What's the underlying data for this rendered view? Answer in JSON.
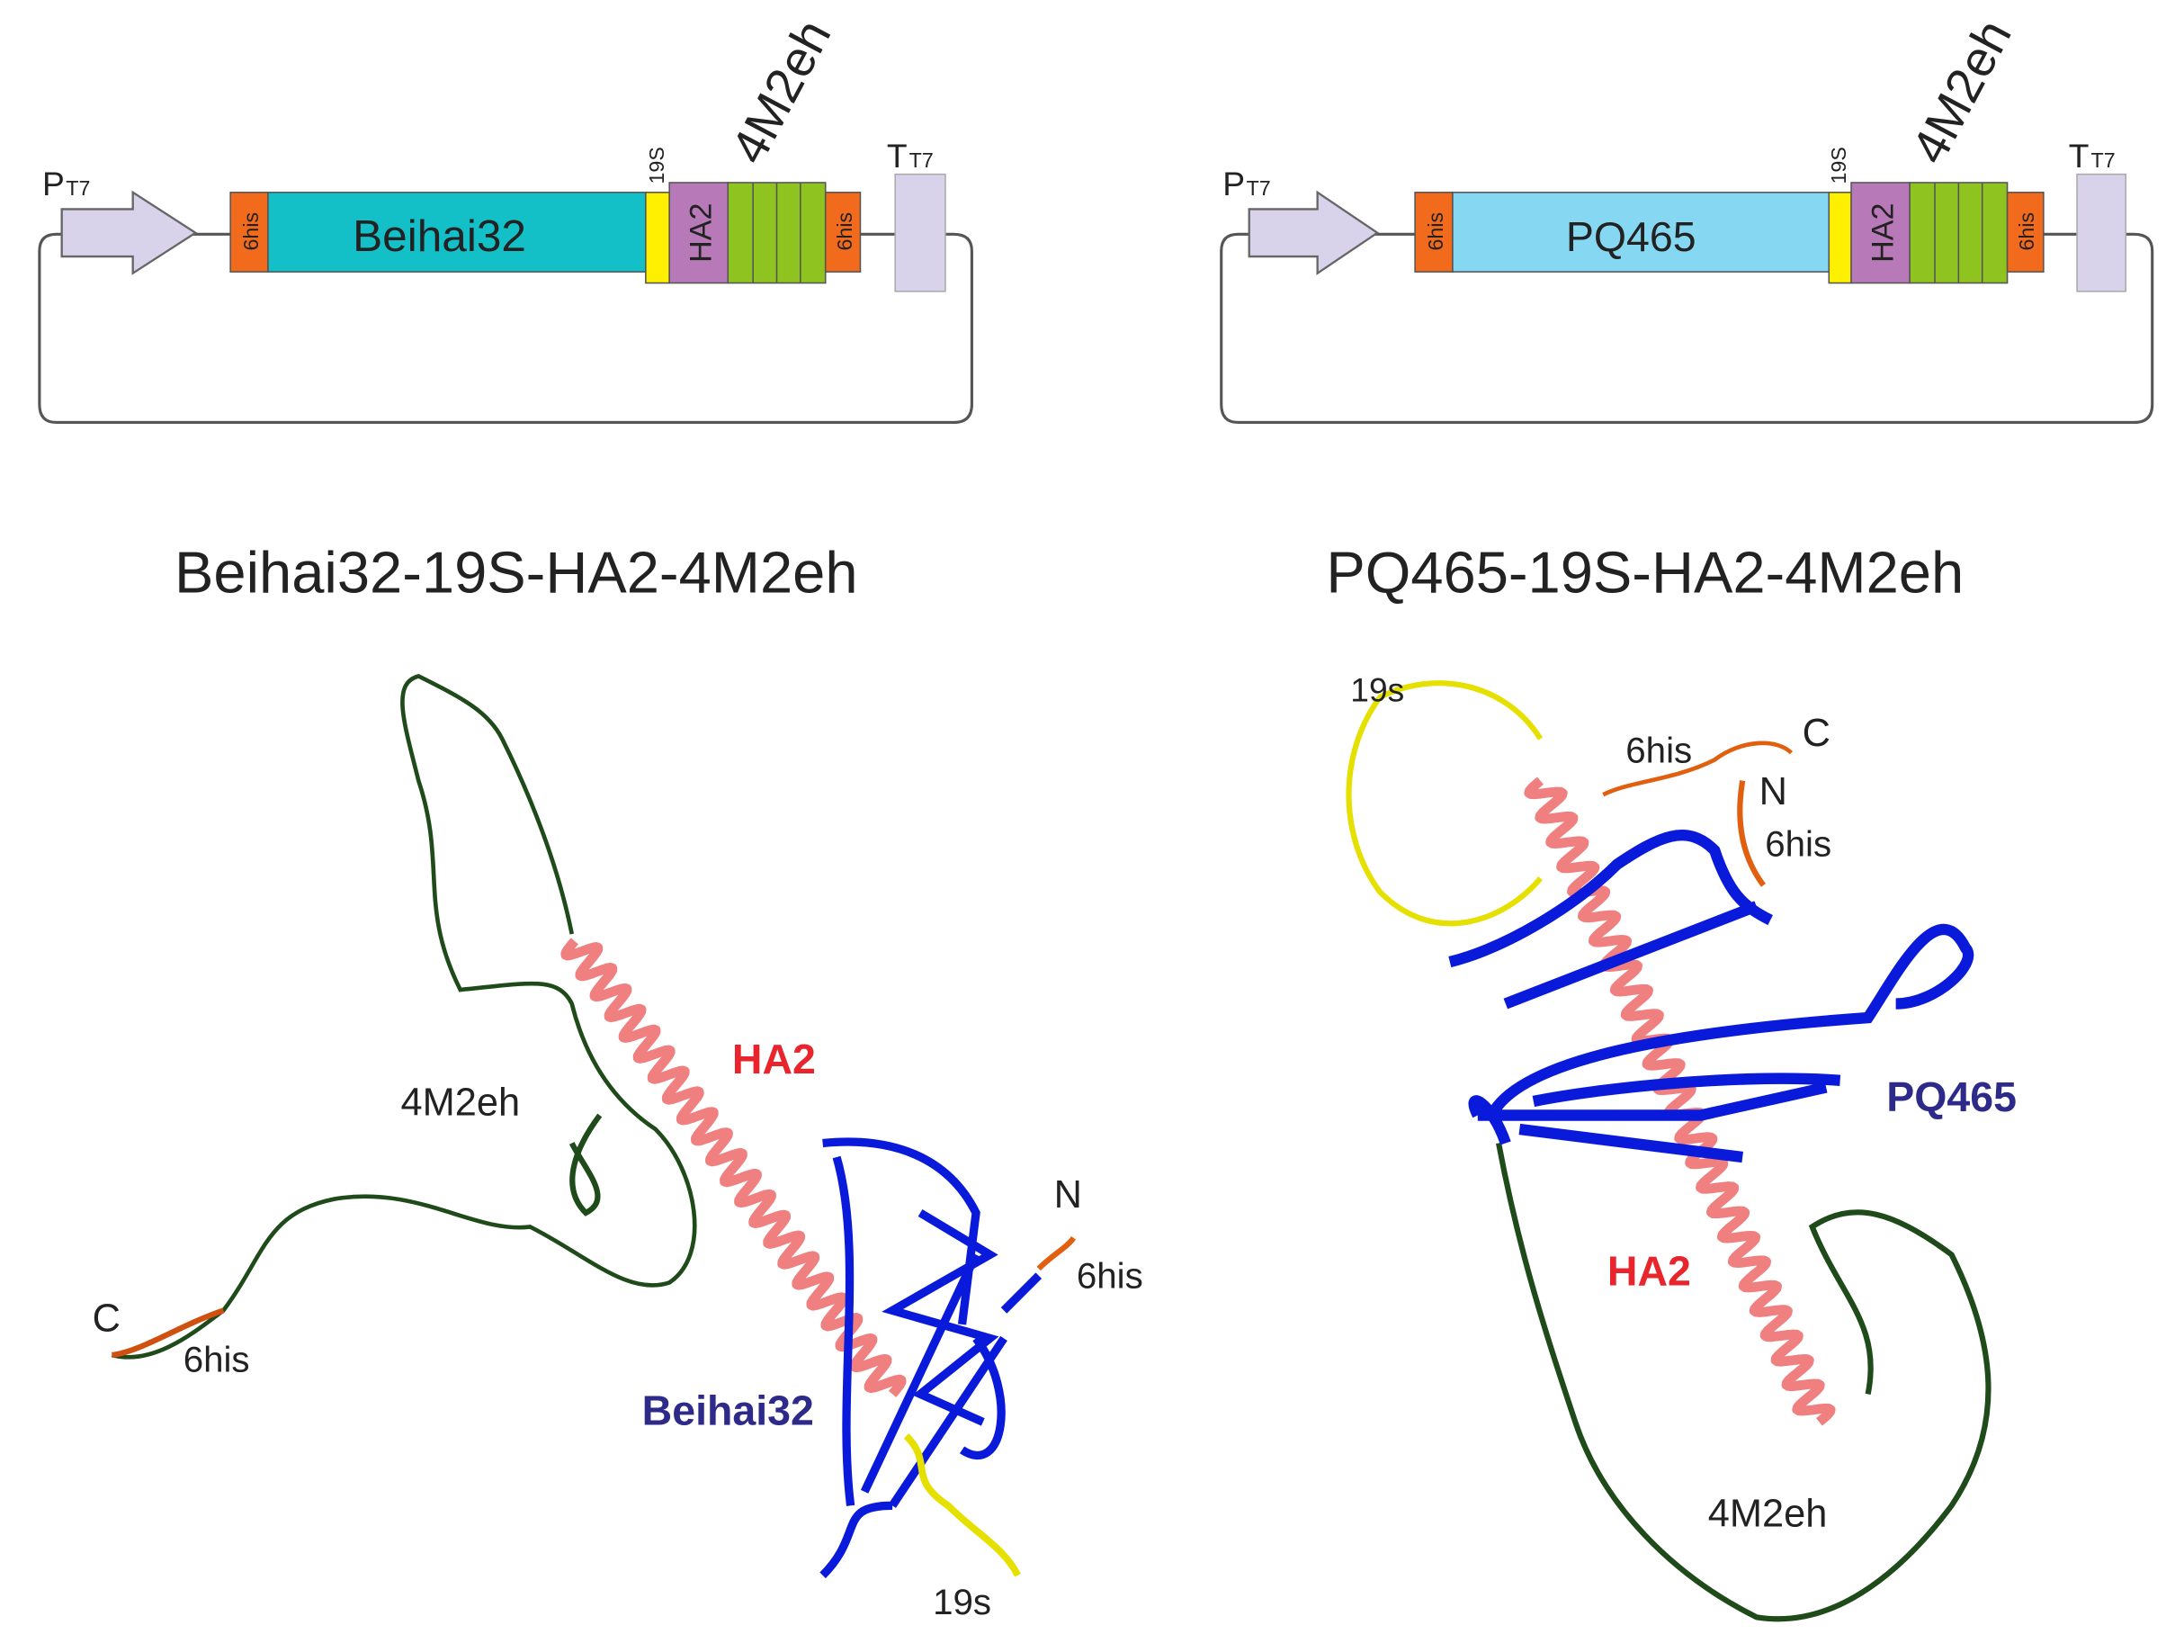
{
  "panels": [
    {
      "plasmid": {
        "promoter": "P",
        "promoter_sub": "T7",
        "terminator": "T",
        "terminator_sub": "T7",
        "segments": [
          "6his",
          "Beihai32",
          "19S",
          "HA2",
          "4M2eh",
          "6his"
        ]
      },
      "title": "Beihai32-19S-HA2-4M2eh",
      "structure_labels": {
        "ha2": "HA2",
        "linker": "4M2eh",
        "n_term": "N",
        "n_tag": "6his",
        "c_term": "C",
        "c_tag": "6his",
        "domain": "Beihai32",
        "spacer": "19s"
      }
    },
    {
      "plasmid": {
        "promoter": "P",
        "promoter_sub": "T7",
        "terminator": "T",
        "terminator_sub": "T7",
        "segments": [
          "6his",
          "PQ465",
          "19S",
          "HA2",
          "4M2eh",
          "6his"
        ]
      },
      "title": "PQ465-19S-HA2-4M2eh",
      "structure_labels": {
        "ha2": "HA2",
        "linker": "4M2eh",
        "n_term": "N",
        "n_tag": "6his",
        "c_term": "C",
        "c_tag": "6his",
        "domain": "PQ465",
        "spacer": "19s"
      }
    }
  ]
}
